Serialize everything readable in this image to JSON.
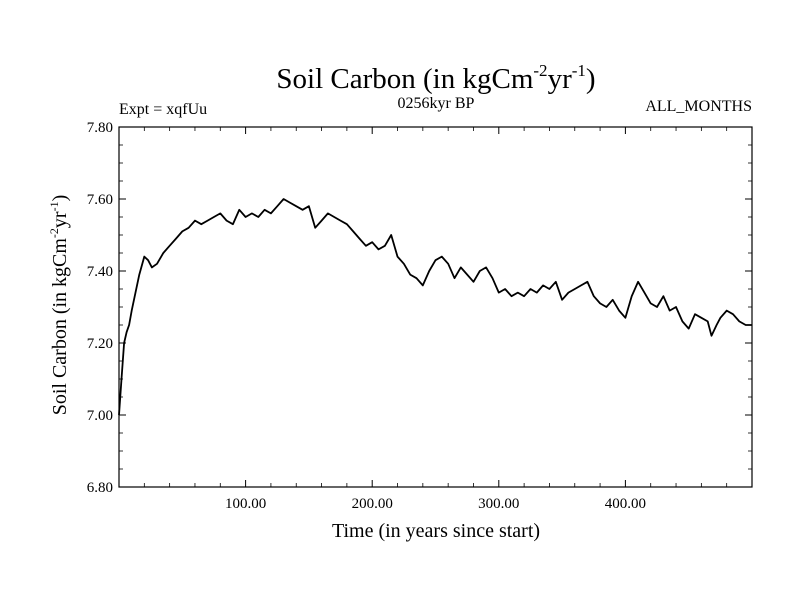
{
  "chart_data": {
    "type": "line",
    "title_base": "Soil Carbon (in kgCm",
    "title_sup1": "-2",
    "title_mid": "yr",
    "title_sup2": "-1",
    "title_close": ")",
    "left_subtitle": "Expt = xqfUu",
    "center_subtitle": "0256kyr BP",
    "right_subtitle": "ALL_MONTHS",
    "xlabel": "Time (in years since start)",
    "ylabel_base": "Soil Carbon (in kgCm",
    "ylabel_sup1": "-2",
    "ylabel_mid": "yr",
    "ylabel_sup2": "-1",
    "ylabel_close": ")",
    "xlim": [
      0,
      500
    ],
    "ylim": [
      6.8,
      7.8
    ],
    "x_ticks": [
      100,
      200,
      300,
      400
    ],
    "x_tick_labels": [
      "100.00",
      "200.00",
      "300.00",
      "400.00"
    ],
    "y_ticks": [
      6.8,
      7.0,
      7.2,
      7.4,
      7.6,
      7.8
    ],
    "y_tick_labels": [
      "6.80",
      "7.00",
      "7.20",
      "7.40",
      "7.60",
      "7.80"
    ],
    "line_color": "#000000",
    "series": [
      {
        "name": "Soil Carbon",
        "x": [
          0,
          2,
          4,
          6,
          8,
          10,
          13,
          16,
          20,
          23,
          26,
          30,
          35,
          40,
          45,
          50,
          55,
          60,
          65,
          70,
          75,
          80,
          85,
          90,
          95,
          100,
          105,
          110,
          115,
          120,
          125,
          130,
          135,
          140,
          145,
          150,
          155,
          160,
          165,
          170,
          175,
          180,
          185,
          190,
          195,
          200,
          205,
          210,
          215,
          220,
          225,
          230,
          235,
          240,
          245,
          250,
          255,
          260,
          265,
          270,
          275,
          280,
          285,
          290,
          295,
          300,
          305,
          310,
          315,
          320,
          325,
          330,
          335,
          340,
          345,
          350,
          355,
          360,
          365,
          370,
          375,
          380,
          385,
          390,
          395,
          400,
          405,
          410,
          415,
          420,
          425,
          430,
          435,
          440,
          445,
          450,
          455,
          460,
          465,
          468,
          472,
          475,
          480,
          485,
          490,
          495,
          500
        ],
        "y": [
          7.0,
          7.1,
          7.2,
          7.23,
          7.25,
          7.29,
          7.34,
          7.39,
          7.44,
          7.43,
          7.41,
          7.42,
          7.45,
          7.47,
          7.49,
          7.51,
          7.52,
          7.54,
          7.53,
          7.54,
          7.55,
          7.56,
          7.54,
          7.53,
          7.57,
          7.55,
          7.56,
          7.55,
          7.57,
          7.56,
          7.58,
          7.6,
          7.59,
          7.58,
          7.57,
          7.58,
          7.52,
          7.54,
          7.56,
          7.55,
          7.54,
          7.53,
          7.51,
          7.49,
          7.47,
          7.48,
          7.46,
          7.47,
          7.5,
          7.44,
          7.42,
          7.39,
          7.38,
          7.36,
          7.4,
          7.43,
          7.44,
          7.42,
          7.38,
          7.41,
          7.39,
          7.37,
          7.4,
          7.41,
          7.38,
          7.34,
          7.35,
          7.33,
          7.34,
          7.33,
          7.35,
          7.34,
          7.36,
          7.35,
          7.37,
          7.32,
          7.34,
          7.35,
          7.36,
          7.37,
          7.33,
          7.31,
          7.3,
          7.32,
          7.29,
          7.27,
          7.33,
          7.37,
          7.34,
          7.31,
          7.3,
          7.33,
          7.29,
          7.3,
          7.26,
          7.24,
          7.28,
          7.27,
          7.26,
          7.22,
          7.25,
          7.27,
          7.29,
          7.28,
          7.26,
          7.25,
          7.25
        ]
      }
    ]
  }
}
